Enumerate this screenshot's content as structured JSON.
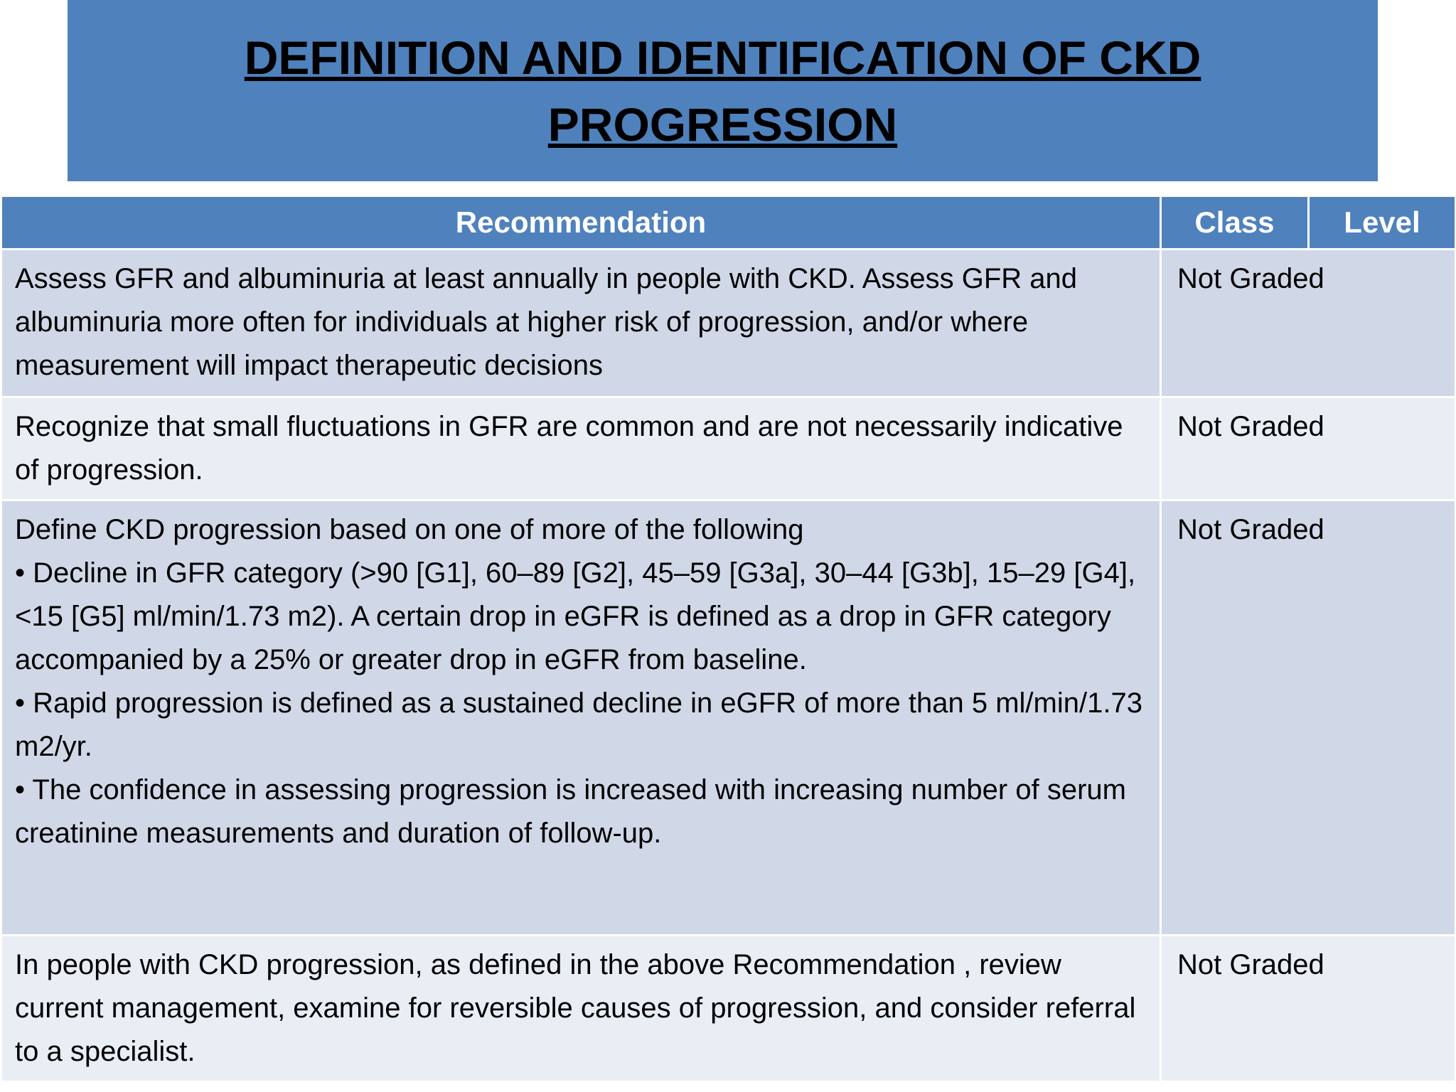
{
  "header": {
    "title": "DEFINITION AND IDENTIFICATION OF CKD PROGRESSION"
  },
  "table": {
    "columns": [
      "Recommendation",
      "Class",
      "Level"
    ],
    "rows": [
      [
        "Assess GFR and albuminuria at least annually in people with CKD. Assess GFR and albuminuria more often for individuals at higher risk of progression, and/or where measurement will impact therapeutic decisions",
        "Not Graded"
      ],
      [
        "Recognize that small fluctuations in GFR are common and are not necessarily indicative of progression.",
        "Not Graded"
      ],
      [
        "Define CKD progression based on one of more of the following\n• Decline in GFR category (>90 [G1], 60–89 [G2], 45–59 [G3a], 30–44 [G3b], 15–29 [G4], <15 [G5] ml/min/1.73 m2). A certain drop in eGFR is defined as a drop in GFR category accompanied by a 25% or greater drop in eGFR from baseline.\n• Rapid progression is defined as a sustained decline in eGFR of more than 5 ml/min/1.73 m2/yr.\n• The confidence in assessing progression is increased with increasing number of serum creatinine measurements and duration of follow-up.",
        "Not Graded"
      ],
      [
        "In people with CKD progression, as defined in the above Recommendation , review current management, examine for reversible causes of progression, and consider referral to a specialist.",
        "Not Graded"
      ]
    ]
  }
}
